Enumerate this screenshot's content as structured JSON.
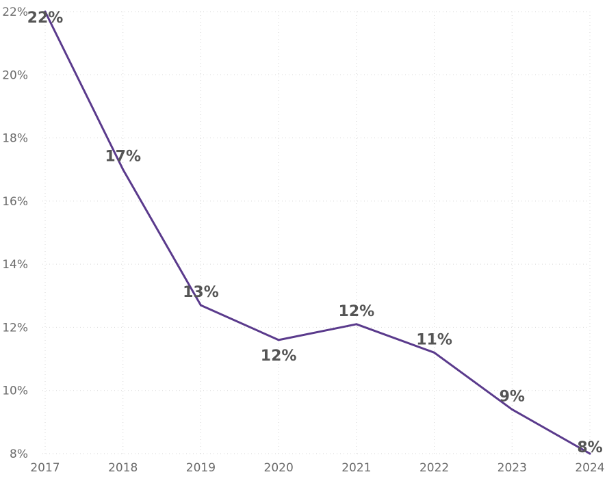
{
  "chart_data": {
    "type": "line",
    "title": "",
    "xlabel": "",
    "ylabel": "",
    "categories": [
      "2017",
      "2018",
      "2019",
      "2020",
      "2021",
      "2022",
      "2023",
      "2024"
    ],
    "series": [
      {
        "color": "#5a3a8c",
        "values": [
          22.0,
          17.0,
          12.7,
          11.6,
          12.1,
          11.2,
          9.4,
          8.0
        ],
        "data_labels": [
          "22%",
          "17%",
          "13%",
          "12%",
          "12%",
          "11%",
          "9%",
          "8%"
        ]
      }
    ],
    "ylim": [
      8,
      22
    ],
    "yticks": [
      8,
      10,
      12,
      14,
      16,
      18,
      20,
      22
    ],
    "ytick_labels": [
      "8%",
      "10%",
      "12%",
      "14%",
      "16%",
      "18%",
      "20%",
      "22%"
    ],
    "grid": true,
    "legend": "none"
  }
}
